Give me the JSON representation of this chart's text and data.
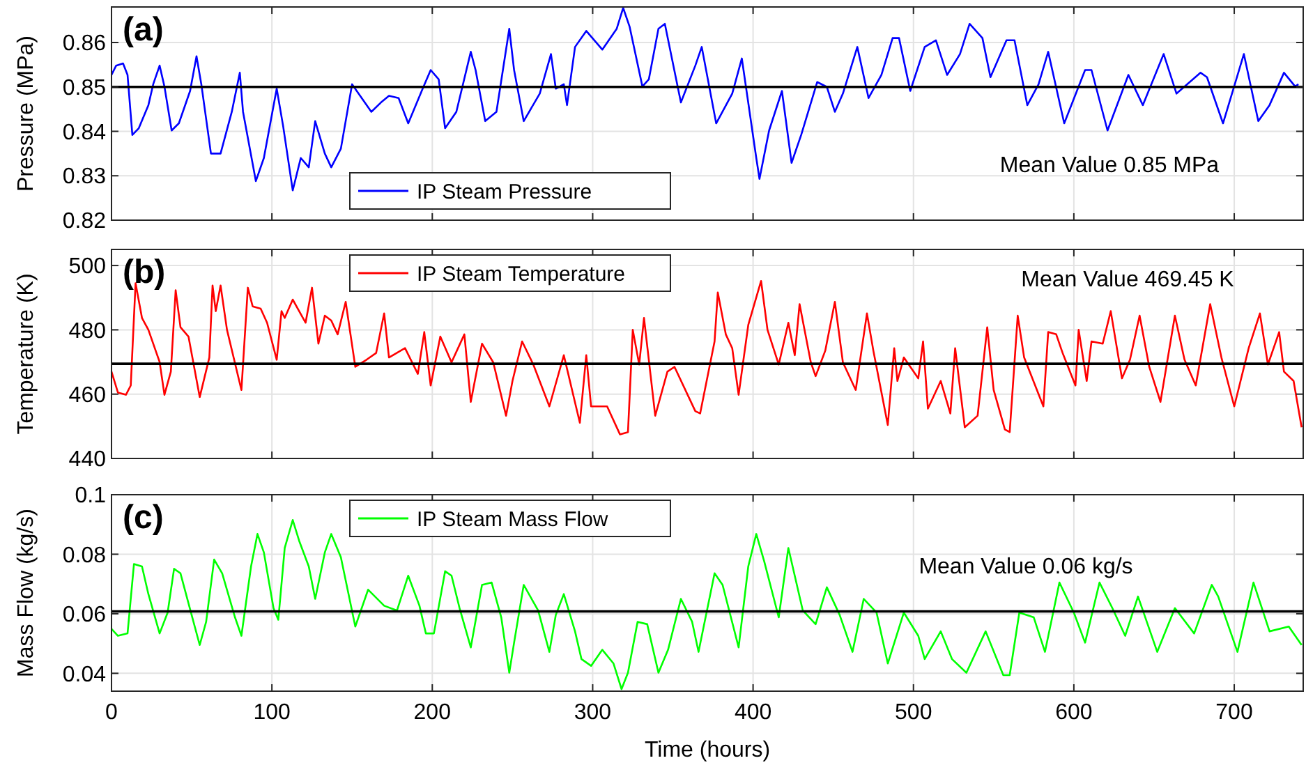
{
  "chart_data": [
    {
      "type": "line",
      "ylabel": "Pressure (MPa)",
      "xlim": [
        0,
        743
      ],
      "xticks": [
        0,
        100,
        200,
        300,
        400,
        500,
        600,
        700
      ],
      "ylim": [
        0.82,
        0.868
      ],
      "yticks": [
        0.82,
        0.83,
        0.84,
        0.85,
        0.86
      ],
      "grid": true,
      "legend": "bottom left",
      "tick_labels": "y",
      "annotations": [
        "(a)",
        "Mean Value 0.85 MPa"
      ],
      "ref_lines": [
        {
          "axis": "y",
          "value": 0.85,
          "color": "#000000"
        }
      ],
      "series": [
        {
          "name": "IP Steam Pressure",
          "color": "#0000ff",
          "x": [
            0,
            2.9,
            7.2,
            10,
            13,
            17,
            23,
            26,
            30,
            33,
            37.5,
            42,
            49,
            53,
            56,
            62,
            68,
            75,
            80,
            82,
            90,
            95,
            103,
            107,
            113,
            118,
            123,
            127,
            133,
            137,
            143,
            150,
            156,
            162,
            168,
            173,
            179,
            185,
            194,
            199,
            204,
            208,
            215,
            224,
            227,
            233,
            240,
            248,
            251,
            257,
            267,
            274,
            277,
            282,
            284,
            289,
            296,
            306,
            315,
            319,
            323,
            331,
            335,
            341,
            345,
            355,
            364,
            368,
            377,
            387,
            393,
            402,
            404,
            410,
            418,
            424,
            430,
            440,
            446,
            451,
            456,
            465,
            472,
            480,
            487,
            491,
            498,
            507,
            514,
            521,
            529,
            535,
            543,
            548,
            558,
            563,
            571,
            578,
            584,
            594,
            607,
            611,
            621,
            634,
            643,
            656,
            664,
            679,
            683,
            693,
            706,
            715,
            722,
            731,
            738,
            740
          ],
          "values": [
            0.8527,
            0.8548,
            0.8553,
            0.8527,
            0.8392,
            0.8407,
            0.8459,
            0.8506,
            0.8548,
            0.8501,
            0.8402,
            0.8418,
            0.8491,
            0.8569,
            0.8506,
            0.835,
            0.835,
            0.8444,
            0.8532,
            0.8444,
            0.8288,
            0.834,
            0.8496,
            0.8412,
            0.8267,
            0.834,
            0.8319,
            0.8423,
            0.835,
            0.8319,
            0.8361,
            0.8506,
            0.8475,
            0.8444,
            0.8465,
            0.848,
            0.8475,
            0.8418,
            0.8496,
            0.8538,
            0.8517,
            0.8407,
            0.8444,
            0.8579,
            0.8538,
            0.8423,
            0.8444,
            0.8631,
            0.8538,
            0.8423,
            0.8485,
            0.8574,
            0.8496,
            0.8506,
            0.8459,
            0.859,
            0.8626,
            0.8584,
            0.8631,
            0.8678,
            0.8636,
            0.8501,
            0.8517,
            0.8631,
            0.8642,
            0.8465,
            0.8548,
            0.859,
            0.8418,
            0.8485,
            0.8564,
            0.834,
            0.8293,
            0.8402,
            0.8491,
            0.8329,
            0.8392,
            0.8511,
            0.85,
            0.8444,
            0.8485,
            0.859,
            0.8475,
            0.8527,
            0.861,
            0.861,
            0.8491,
            0.859,
            0.8605,
            0.8527,
            0.8574,
            0.8642,
            0.861,
            0.8522,
            0.8605,
            0.8605,
            0.8459,
            0.8506,
            0.8579,
            0.8418,
            0.8538,
            0.8538,
            0.8402,
            0.8527,
            0.8459,
            0.8574,
            0.8485,
            0.8532,
            0.8522,
            0.8418,
            0.8574,
            0.8423,
            0.8459,
            0.8532,
            0.8501,
            0.8506
          ]
        }
      ]
    },
    {
      "type": "line",
      "ylabel": "Temperature (K)",
      "xlim": [
        0,
        743
      ],
      "xticks": [
        0,
        100,
        200,
        300,
        400,
        500,
        600,
        700
      ],
      "ylim": [
        440,
        505
      ],
      "yticks": [
        440,
        460,
        480,
        500
      ],
      "grid": true,
      "legend": "top left",
      "tick_labels": "y",
      "annotations": [
        "(b)",
        "Mean Value 469.45 K"
      ],
      "ref_lines": [
        {
          "axis": "y",
          "value": 469.45,
          "color": "#000000"
        }
      ],
      "series": [
        {
          "name": "IP Steam Temperature",
          "color": "#ff0000",
          "x": [
            0,
            4,
            9,
            12,
            15,
            19,
            23,
            30,
            33,
            37,
            40,
            43,
            48,
            55,
            61,
            63,
            65,
            68,
            72,
            81,
            85,
            88,
            93,
            97,
            103,
            106,
            108,
            113,
            117,
            121,
            125,
            129,
            133,
            137,
            141,
            146,
            152,
            159,
            165,
            170,
            173,
            183,
            191,
            195,
            199,
            205,
            212,
            220,
            224,
            231,
            238,
            246,
            250,
            256,
            263,
            273,
            282,
            292,
            296,
            299,
            309,
            317,
            322,
            325,
            329,
            332,
            339,
            346.6,
            351,
            364,
            367,
            376,
            378,
            383,
            387,
            391,
            397,
            405,
            409,
            416,
            422,
            426,
            429,
            436,
            439,
            445,
            451,
            456,
            464,
            471,
            475,
            484,
            488,
            490,
            494,
            503,
            506,
            509,
            517,
            523,
            526,
            532,
            540,
            546,
            550,
            557,
            560,
            565,
            569,
            581,
            584,
            589,
            593,
            601,
            603,
            608,
            611,
            618,
            623,
            630,
            635,
            641,
            647,
            654,
            663,
            669,
            676,
            685,
            692,
            700,
            709,
            716,
            721,
            728,
            731,
            737,
            742
          ],
          "values": [
            467,
            460.5,
            459.8,
            462.7,
            494.5,
            483.7,
            480,
            470,
            459.8,
            467,
            492.3,
            480.8,
            477.9,
            459.1,
            471.4,
            493.8,
            485.8,
            493.8,
            480,
            461.3,
            493.1,
            487.3,
            486.6,
            482.2,
            470.7,
            485.8,
            483.7,
            489.4,
            485.8,
            482.2,
            493.1,
            475.7,
            484.4,
            482.9,
            478.6,
            488.7,
            468.5,
            470.7,
            472.8,
            485.1,
            471.4,
            474.3,
            466.3,
            479.3,
            462.7,
            477.9,
            469.9,
            478.6,
            457.6,
            475.7,
            469.9,
            453.3,
            464.1,
            476.4,
            469.2,
            456.2,
            472.1,
            451.1,
            472.1,
            456.2,
            456.2,
            447.5,
            448.2,
            480,
            469.2,
            483.7,
            453.3,
            467,
            468.5,
            454.7,
            454,
            476.4,
            491.6,
            478.6,
            474.3,
            459.8,
            481.5,
            495.2,
            480,
            469.2,
            482.2,
            472.1,
            488,
            469.9,
            465.6,
            473.5,
            488.7,
            469.9,
            461.3,
            485.1,
            473.5,
            450.4,
            474.3,
            464.1,
            471.4,
            464.9,
            476.4,
            455.5,
            464.1,
            454,
            474.3,
            449.7,
            453.3,
            480.8,
            461.3,
            449,
            448.2,
            484.4,
            471.4,
            456.2,
            479.3,
            478.6,
            472.8,
            462.7,
            480,
            464.1,
            476.4,
            475.7,
            485.8,
            464.9,
            470.7,
            484.4,
            468.5,
            457.6,
            484.4,
            470.7,
            462.7,
            488,
            471.4,
            456.2,
            474.3,
            485.1,
            469.2,
            479.3,
            467,
            464.1,
            449.7
          ]
        }
      ]
    },
    {
      "type": "line",
      "xlabel": "Time (hours)",
      "ylabel": "Mass Flow (kg/s)",
      "xlim": [
        0,
        743
      ],
      "xticks": [
        0,
        100,
        200,
        300,
        400,
        500,
        600,
        700
      ],
      "ylim": [
        0.034,
        0.1
      ],
      "yticks": [
        0.04,
        0.06,
        0.08,
        0.1
      ],
      "grid": true,
      "legend": "top left",
      "annotations": [
        "(c)",
        "Mean Value 0.06 kg/s"
      ],
      "ref_lines": [
        {
          "axis": "y",
          "value": 0.0608,
          "color": "#000000"
        }
      ],
      "series": [
        {
          "name": "IP Steam Mass Flow",
          "color": "#00ff00",
          "x": [
            0,
            4,
            10,
            14,
            19,
            23,
            30,
            35,
            39,
            43,
            48,
            55,
            59,
            64,
            69,
            77,
            81,
            87,
            91,
            95,
            101,
            104,
            108,
            113,
            117,
            123,
            127,
            133,
            137,
            143,
            152,
            160,
            170,
            178,
            185,
            192,
            196,
            201,
            208,
            212,
            217,
            224,
            231,
            237,
            243,
            248,
            251,
            257,
            266,
            273,
            277,
            282,
            289,
            293,
            299,
            306,
            313,
            318,
            322,
            328,
            334,
            341,
            347,
            355,
            362,
            366,
            376,
            381,
            391,
            397,
            402,
            407,
            416,
            422,
            431,
            439,
            446,
            454,
            462,
            469,
            477,
            484,
            494,
            503,
            507,
            517,
            524,
            533,
            545,
            556,
            560,
            566,
            575,
            582,
            591,
            600,
            607,
            616,
            624,
            632,
            640,
            652,
            663,
            675,
            686,
            690,
            702,
            712,
            722,
            734,
            742
          ],
          "values": [
            0.0549,
            0.0526,
            0.0534,
            0.0767,
            0.0759,
            0.0666,
            0.0534,
            0.0604,
            0.0751,
            0.0736,
            0.0635,
            0.0495,
            0.0573,
            0.0782,
            0.0736,
            0.0588,
            0.0526,
            0.0759,
            0.0868,
            0.0806,
            0.0619,
            0.058,
            0.0821,
            0.0915,
            0.0845,
            0.0759,
            0.065,
            0.0806,
            0.0868,
            0.079,
            0.0557,
            0.0681,
            0.0627,
            0.0611,
            0.0728,
            0.0627,
            0.0534,
            0.0534,
            0.0743,
            0.0728,
            0.0619,
            0.0487,
            0.0697,
            0.0705,
            0.0588,
            0.0402,
            0.0503,
            0.0697,
            0.0611,
            0.0472,
            0.0596,
            0.0666,
            0.0541,
            0.0448,
            0.0425,
            0.0479,
            0.0433,
            0.0347,
            0.0402,
            0.0573,
            0.0565,
            0.0402,
            0.0479,
            0.065,
            0.0573,
            0.0472,
            0.0736,
            0.0697,
            0.0487,
            0.0759,
            0.0868,
            0.0775,
            0.0588,
            0.0821,
            0.0611,
            0.0565,
            0.0689,
            0.0596,
            0.0472,
            0.065,
            0.0604,
            0.0433,
            0.0604,
            0.0526,
            0.0448,
            0.0541,
            0.0448,
            0.0402,
            0.0541,
            0.0394,
            0.0394,
            0.0604,
            0.0588,
            0.0472,
            0.0705,
            0.0604,
            0.0503,
            0.0705,
            0.0619,
            0.0526,
            0.0658,
            0.0472,
            0.0619,
            0.0534,
            0.0697,
            0.0658,
            0.0472,
            0.0705,
            0.0541,
            0.0557,
            0.0495
          ]
        }
      ]
    }
  ]
}
